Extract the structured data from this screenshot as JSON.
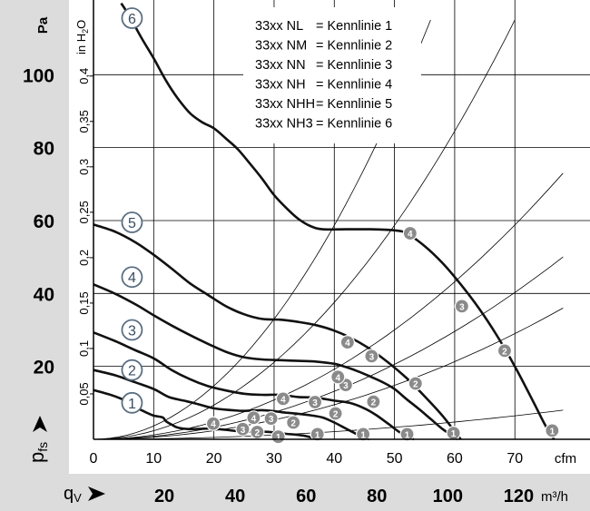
{
  "chart_data": {
    "type": "line",
    "left_axis_unit": "Pa",
    "left_axis_ticks": [
      20,
      40,
      60,
      80,
      100
    ],
    "left_axis_range": [
      0,
      119.6
    ],
    "inner_axis_unit": "in H2O",
    "inner_axis_unit_main": "in H",
    "inner_axis_unit_sub": "2",
    "inner_axis_unit_tail": "O",
    "inner_axis_ticks": [
      "0,05",
      "0,1",
      "0,15",
      "0,2",
      "0,25",
      "0,3",
      "0,35",
      "0,4"
    ],
    "inner_axis_values": [
      0.05,
      0.1,
      0.15,
      0.2,
      0.25,
      0.3,
      0.35,
      0.4
    ],
    "ylabel_main": "p",
    "ylabel_sub": "fs",
    "x_cfm_ticks": [
      0,
      10,
      20,
      30,
      40,
      50,
      60,
      70
    ],
    "x_cfm_unit": "cfm",
    "x_cfm_range": [
      0,
      78
    ],
    "xlabel_main": "q",
    "xlabel_sub": "V",
    "x_m3h_ticks": [
      20,
      40,
      60,
      80,
      100,
      120
    ],
    "x_m3h_unit": "m³/h",
    "grid": true,
    "legend_position": "top-center",
    "legend": [
      {
        "model": "33xx NL",
        "label": "= Kennlinie 1"
      },
      {
        "model": "33xx NM",
        "label": "= Kennlinie 2"
      },
      {
        "model": "33xx NN",
        "label": "= Kennlinie 3"
      },
      {
        "model": "33xx NH",
        "label": "= Kennlinie 4"
      },
      {
        "model": "33xx NHH",
        "label": "= Kennlinie 5"
      },
      {
        "model": "33xx NH3",
        "label": "= Kennlinie 6"
      }
    ],
    "series": [
      {
        "name": "1",
        "x": [
          0.0,
          3.2,
          5.4,
          7.0,
          8.6,
          10.0,
          11.5,
          12.0,
          13.0,
          14.0,
          16.0,
          18.0,
          20.0,
          22.0,
          24.0,
          25.0,
          26.0,
          28.0,
          30.0,
          32.0,
          33.5,
          34.5,
          35.5,
          36.5,
          37.6
        ],
        "y": [
          13.5,
          12.0,
          10.5,
          8.8,
          7.5,
          6.5,
          6.0,
          5.0,
          4.0,
          3.2,
          2.8,
          2.9,
          2.9,
          2.6,
          2.2,
          2.1,
          2.1,
          2.1,
          1.9,
          1.5,
          1.3,
          1.1,
          0.8,
          0.4,
          0.0
        ],
        "label_at": [
          6.4,
          10.0
        ]
      },
      {
        "name": "2",
        "x": [
          0.0,
          3.5,
          7.0,
          10.0,
          12.5,
          15.0,
          17.0,
          20.0,
          23.0,
          25.0,
          28.0,
          30.0,
          32.0,
          34.0,
          36.0,
          38.0,
          40.0,
          42.0,
          44.0,
          45.8
        ],
        "y": [
          19.0,
          17.6,
          15.6,
          13.8,
          11.6,
          10.6,
          9.8,
          8.5,
          8.0,
          7.8,
          8.0,
          7.7,
          7.3,
          7.0,
          6.6,
          6.0,
          4.6,
          2.9,
          1.2,
          0.0
        ],
        "label_at": [
          6.4,
          19.0
        ]
      },
      {
        "name": "3",
        "x": [
          0.0,
          3.5,
          7.0,
          10.0,
          13.0,
          16.0,
          19.0,
          22.0,
          25.0,
          28.0,
          31.0,
          34.0,
          37.0,
          40.0,
          42.5,
          45.0,
          47.0,
          49.0,
          51.0,
          53.2
        ],
        "y": [
          29.3,
          27.0,
          24.4,
          22.2,
          19.0,
          16.5,
          14.6,
          13.4,
          12.5,
          12.2,
          12.2,
          11.6,
          11.4,
          10.6,
          10.0,
          8.5,
          6.6,
          4.2,
          1.8,
          0.0
        ],
        "label_at": [
          6.4,
          30.0
        ]
      },
      {
        "name": "4",
        "x": [
          0.0,
          3.5,
          7.0,
          10.0,
          13.0,
          16.0,
          19.0,
          22.0,
          25.0,
          28.0,
          31.0,
          34.0,
          37.0,
          40.0,
          42.0,
          44.0,
          46.0,
          48.0,
          50.0,
          52.0,
          54.0,
          56.0,
          58.0,
          60.5
        ],
        "y": [
          42.5,
          40.0,
          37.0,
          34.0,
          31.2,
          28.6,
          26.2,
          24.0,
          22.5,
          21.9,
          21.7,
          21.5,
          21.3,
          20.7,
          19.8,
          18.6,
          17.2,
          15.7,
          13.8,
          11.0,
          8.4,
          5.6,
          2.8,
          0.0
        ],
        "label_at": [
          6.4,
          44.5
        ]
      },
      {
        "name": "5",
        "x": [
          0.0,
          3.5,
          7.0,
          10.0,
          13.0,
          16.0,
          19.0,
          22.0,
          25.0,
          28.0,
          31.0,
          34.0,
          37.0,
          40.0,
          43.0,
          46.0,
          49.0,
          52.0,
          55.0,
          58.0,
          61.0
        ],
        "y": [
          58.9,
          57.0,
          54.0,
          50.6,
          46.8,
          42.8,
          39.6,
          36.5,
          34.3,
          33.0,
          32.8,
          32.2,
          31.3,
          29.8,
          27.6,
          24.7,
          21.0,
          16.8,
          11.8,
          6.4,
          0.0
        ],
        "label_at": [
          6.4,
          59.5
        ]
      },
      {
        "name": "6",
        "x": [
          4.6,
          6.0,
          8.0,
          10.0,
          12.0,
          14.0,
          16.0,
          18.0,
          20.0,
          22.0,
          24.0,
          26.0,
          28.0,
          30.0,
          32.0,
          34.0,
          36.0,
          38.0,
          42.0,
          46.0,
          50.0,
          52.0,
          55.0,
          58.0,
          61.0,
          64.0,
          67.0,
          70.0,
          73.0,
          75.0,
          76.5
        ],
        "y": [
          119.6,
          116.0,
          110.0,
          104.5,
          98.5,
          93.5,
          89.5,
          87.0,
          85.3,
          82.5,
          79.5,
          75.6,
          71.5,
          67.0,
          63.5,
          60.5,
          58.5,
          57.6,
          57.6,
          57.6,
          57.3,
          56.5,
          53.0,
          48.3,
          42.5,
          36.0,
          28.5,
          20.0,
          10.5,
          4.0,
          0.0
        ],
        "label_at": [
          6.4,
          115.5
        ]
      }
    ],
    "system_curves": [
      {
        "x_end": 78,
        "y_end": 8
      },
      {
        "x_end": 78,
        "y_end": 36
      },
      {
        "x_end": 78,
        "y_end": 50
      },
      {
        "x_end": 78,
        "y_end": 73
      },
      {
        "x_end": 70,
        "y_end": 115
      },
      {
        "x_end": 56,
        "y_end": 115
      }
    ],
    "operating_points": [
      {
        "label": "1",
        "x": 30.7,
        "y": 0.7
      },
      {
        "label": "1",
        "x": 37.2,
        "y": 1.4
      },
      {
        "label": "1",
        "x": 44.8,
        "y": 1.4
      },
      {
        "label": "1",
        "x": 52.1,
        "y": 1.4
      },
      {
        "label": "1",
        "x": 59.8,
        "y": 1.7
      },
      {
        "label": "1",
        "x": 76.2,
        "y": 2.4
      },
      {
        "label": "2",
        "x": 27.2,
        "y": 2.0
      },
      {
        "label": "2",
        "x": 33.2,
        "y": 4.6
      },
      {
        "label": "2",
        "x": 40.2,
        "y": 7.1
      },
      {
        "label": "2",
        "x": 46.5,
        "y": 10.3
      },
      {
        "label": "2",
        "x": 53.5,
        "y": 15.3
      },
      {
        "label": "2",
        "x": 68.3,
        "y": 24.3
      },
      {
        "label": "3",
        "x": 24.8,
        "y": 2.8
      },
      {
        "label": "3",
        "x": 29.5,
        "y": 5.7
      },
      {
        "label": "3",
        "x": 36.8,
        "y": 10.2
      },
      {
        "label": "3",
        "x": 41.9,
        "y": 14.9
      },
      {
        "label": "3",
        "x": 46.2,
        "y": 22.8
      },
      {
        "label": "3",
        "x": 61.2,
        "y": 36.5
      },
      {
        "label": "4",
        "x": 19.9,
        "y": 4.3
      },
      {
        "label": "4",
        "x": 26.6,
        "y": 5.9
      },
      {
        "label": "4",
        "x": 31.5,
        "y": 11.1
      },
      {
        "label": "4",
        "x": 40.6,
        "y": 17.1
      },
      {
        "label": "4",
        "x": 42.2,
        "y": 26.6
      },
      {
        "label": "4",
        "x": 52.6,
        "y": 56.5
      }
    ]
  }
}
